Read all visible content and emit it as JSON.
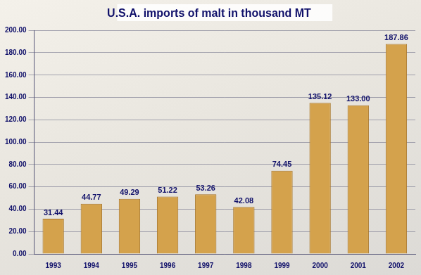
{
  "chart_data": {
    "type": "bar",
    "title": "U.S.A. imports of malt in thousand MT",
    "categories": [
      "1993",
      "1994",
      "1995",
      "1996",
      "1997",
      "1998",
      "1999",
      "2000",
      "2001",
      "2002"
    ],
    "values": [
      31.44,
      44.77,
      49.29,
      51.22,
      53.26,
      42.08,
      74.45,
      135.12,
      133.0,
      187.86
    ],
    "value_labels": [
      "31.44",
      "44.77",
      "49.29",
      "51.22",
      "53.26",
      "42.08",
      "74.45",
      "135.12",
      "133.00",
      "187.86"
    ],
    "color": "#d4a24c",
    "ylim": [
      0,
      200
    ],
    "yticks": [
      {
        "value": 0,
        "label": "0.00"
      },
      {
        "value": 20,
        "label": "20.00"
      },
      {
        "value": 40,
        "label": "40.00"
      },
      {
        "value": 60,
        "label": "60.00"
      },
      {
        "value": 80,
        "label": "80.00"
      },
      {
        "value": 100,
        "label": "100.00"
      },
      {
        "value": 120,
        "label": "120.00"
      },
      {
        "value": 140,
        "label": "140.00"
      },
      {
        "value": 160,
        "label": "160.00"
      },
      {
        "value": 180,
        "label": "180.00"
      },
      {
        "value": 200,
        "label": "200.00"
      }
    ],
    "grid": true,
    "data_labels": true
  }
}
